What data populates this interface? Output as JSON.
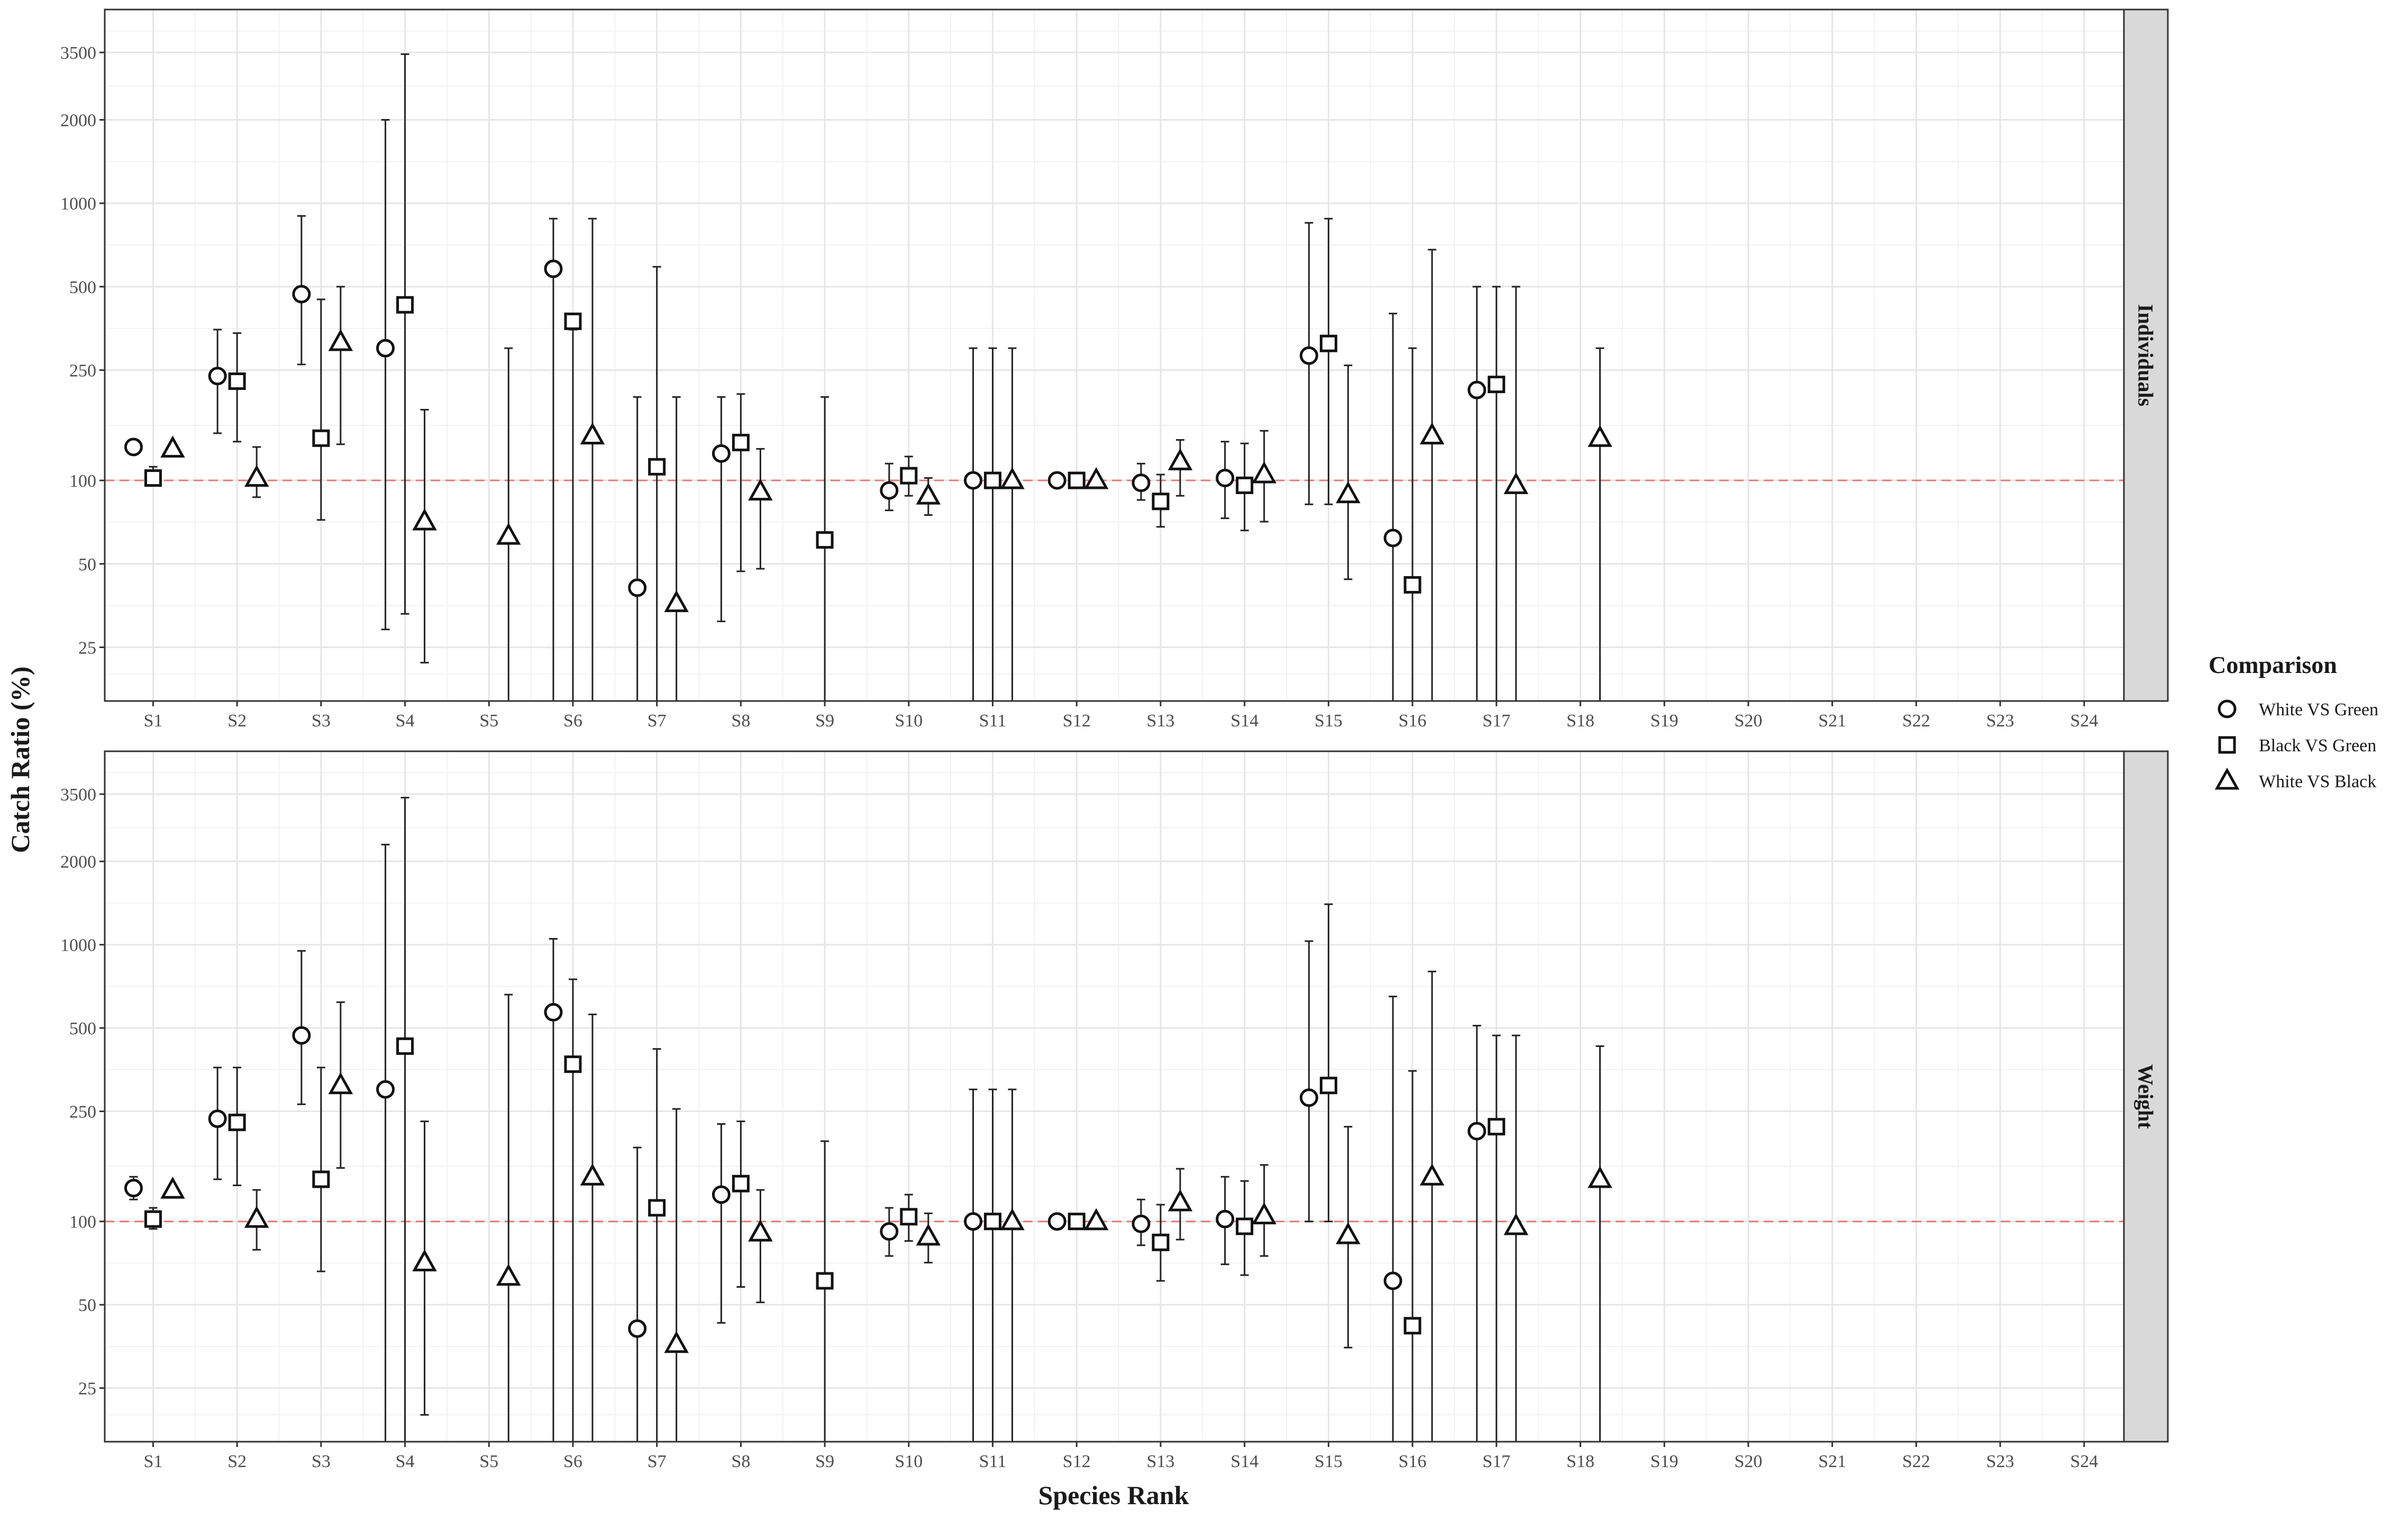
{
  "chart_data": {
    "type": "scatter",
    "xlabel": "Species Rank",
    "ylabel": "Catch Ratio (%)",
    "y_scale": "log",
    "y_ticks": [
      25,
      50,
      100,
      250,
      500,
      1000,
      2000,
      3500
    ],
    "y_tick_labels": [
      "25",
      "50",
      "100",
      "250",
      "500",
      "1000",
      "2000",
      "3500"
    ],
    "ylim": [
      16,
      5000
    ],
    "reference_line": 100,
    "reference_color": "#e07a7a",
    "categories": [
      "S1",
      "S2",
      "S3",
      "S4",
      "S5",
      "S6",
      "S7",
      "S8",
      "S9",
      "S10",
      "S11",
      "S12",
      "S13",
      "S14",
      "S15",
      "S16",
      "S17",
      "S18",
      "S19",
      "S20",
      "S21",
      "S22",
      "S23",
      "S24"
    ],
    "grid": true,
    "legend": {
      "title": "Comparison",
      "placement": "right",
      "entries": [
        {
          "label": "White VS Green",
          "shape": "circle"
        },
        {
          "label": "Black VS Green",
          "shape": "square"
        },
        {
          "label": "White VS Black",
          "shape": "triangle"
        }
      ]
    },
    "panels": [
      {
        "label": "Individuals",
        "series": [
          {
            "name": "White VS Green",
            "shape": "circle",
            "points": [
              {
                "x": "S1",
                "y": 132,
                "lo": 124,
                "hi": 140
              },
              {
                "x": "S2",
                "y": 238,
                "lo": 148,
                "hi": 350
              },
              {
                "x": "S3",
                "y": 470,
                "lo": 262,
                "hi": 900
              },
              {
                "x": "S4",
                "y": 300,
                "lo": 29,
                "hi": 2000
              },
              {
                "x": "S6",
                "y": 580,
                "lo": 16,
                "hi": 880
              },
              {
                "x": "S7",
                "y": 41,
                "lo": 16,
                "hi": 200
              },
              {
                "x": "S8",
                "y": 125,
                "lo": 31,
                "hi": 200
              },
              {
                "x": "S10",
                "y": 92,
                "lo": 78,
                "hi": 115
              },
              {
                "x": "S11",
                "y": 100,
                "lo": 16,
                "hi": 300
              },
              {
                "x": "S12",
                "y": 100,
                "lo": 97,
                "hi": 103
              },
              {
                "x": "S13",
                "y": 98,
                "lo": 85,
                "hi": 115
              },
              {
                "x": "S14",
                "y": 102,
                "lo": 73,
                "hi": 138
              },
              {
                "x": "S15",
                "y": 282,
                "lo": 82,
                "hi": 850
              },
              {
                "x": "S16",
                "y": 62,
                "lo": 16,
                "hi": 400
              },
              {
                "x": "S17",
                "y": 212,
                "lo": 16,
                "hi": 500
              }
            ]
          },
          {
            "name": "Black VS Green",
            "shape": "square",
            "points": [
              {
                "x": "S1",
                "y": 102,
                "lo": 97,
                "hi": 112
              },
              {
                "x": "S2",
                "y": 228,
                "lo": 138,
                "hi": 340
              },
              {
                "x": "S3",
                "y": 142,
                "lo": 72,
                "hi": 450
              },
              {
                "x": "S4",
                "y": 430,
                "lo": 33,
                "hi": 3450
              },
              {
                "x": "S6",
                "y": 375,
                "lo": 16,
                "hi": 350
              },
              {
                "x": "S7",
                "y": 112,
                "lo": 16,
                "hi": 590
              },
              {
                "x": "S8",
                "y": 137,
                "lo": 47,
                "hi": 205
              },
              {
                "x": "S9",
                "y": 61,
                "lo": 16,
                "hi": 200
              },
              {
                "x": "S10",
                "y": 104,
                "lo": 88,
                "hi": 122
              },
              {
                "x": "S11",
                "y": 100,
                "lo": 16,
                "hi": 300
              },
              {
                "x": "S12",
                "y": 100,
                "lo": 97,
                "hi": 103
              },
              {
                "x": "S13",
                "y": 84,
                "lo": 68,
                "hi": 105
              },
              {
                "x": "S14",
                "y": 96,
                "lo": 66,
                "hi": 136
              },
              {
                "x": "S15",
                "y": 312,
                "lo": 82,
                "hi": 880
              },
              {
                "x": "S16",
                "y": 42,
                "lo": 16,
                "hi": 300
              },
              {
                "x": "S17",
                "y": 222,
                "lo": 16,
                "hi": 500
              }
            ]
          },
          {
            "name": "White VS Black",
            "shape": "triangle",
            "points": [
              {
                "x": "S1",
                "y": 130,
                "lo": 128,
                "hi": 132
              },
              {
                "x": "S2",
                "y": 102,
                "lo": 87,
                "hi": 132
              },
              {
                "x": "S3",
                "y": 315,
                "lo": 135,
                "hi": 500
              },
              {
                "x": "S4",
                "y": 71,
                "lo": 22,
                "hi": 180
              },
              {
                "x": "S5",
                "y": 63,
                "lo": 16,
                "hi": 300
              },
              {
                "x": "S6",
                "y": 145,
                "lo": 16,
                "hi": 880
              },
              {
                "x": "S7",
                "y": 36,
                "lo": 16,
                "hi": 200
              },
              {
                "x": "S8",
                "y": 91,
                "lo": 48,
                "hi": 130
              },
              {
                "x": "S10",
                "y": 88,
                "lo": 75,
                "hi": 102
              },
              {
                "x": "S11",
                "y": 100,
                "lo": 16,
                "hi": 300
              },
              {
                "x": "S12",
                "y": 100,
                "lo": 94,
                "hi": 104
              },
              {
                "x": "S13",
                "y": 117,
                "lo": 88,
                "hi": 140
              },
              {
                "x": "S14",
                "y": 105,
                "lo": 71,
                "hi": 151
              },
              {
                "x": "S15",
                "y": 89,
                "lo": 44,
                "hi": 260
              },
              {
                "x": "S16",
                "y": 145,
                "lo": 16,
                "hi": 680
              },
              {
                "x": "S17",
                "y": 96,
                "lo": 16,
                "hi": 500
              },
              {
                "x": "S18",
                "y": 142,
                "lo": 16,
                "hi": 300
              }
            ]
          }
        ]
      },
      {
        "label": "Weight",
        "series": [
          {
            "name": "White VS Green",
            "shape": "circle",
            "points": [
              {
                "x": "S1",
                "y": 132,
                "lo": 120,
                "hi": 145
              },
              {
                "x": "S2",
                "y": 235,
                "lo": 142,
                "hi": 360
              },
              {
                "x": "S3",
                "y": 470,
                "lo": 265,
                "hi": 950
              },
              {
                "x": "S4",
                "y": 300,
                "lo": 16,
                "hi": 2300
              },
              {
                "x": "S6",
                "y": 570,
                "lo": 16,
                "hi": 1050
              },
              {
                "x": "S7",
                "y": 41,
                "lo": 16,
                "hi": 185
              },
              {
                "x": "S8",
                "y": 125,
                "lo": 43,
                "hi": 225
              },
              {
                "x": "S10",
                "y": 92,
                "lo": 75,
                "hi": 112
              },
              {
                "x": "S11",
                "y": 100,
                "lo": 16,
                "hi": 300
              },
              {
                "x": "S12",
                "y": 100,
                "lo": 97,
                "hi": 103
              },
              {
                "x": "S13",
                "y": 98,
                "lo": 82,
                "hi": 120
              },
              {
                "x": "S14",
                "y": 102,
                "lo": 70,
                "hi": 145
              },
              {
                "x": "S15",
                "y": 280,
                "lo": 100,
                "hi": 1030
              },
              {
                "x": "S16",
                "y": 61,
                "lo": 16,
                "hi": 650
              },
              {
                "x": "S17",
                "y": 212,
                "lo": 16,
                "hi": 510
              }
            ]
          },
          {
            "name": "Black VS Green",
            "shape": "square",
            "points": [
              {
                "x": "S1",
                "y": 102,
                "lo": 94,
                "hi": 112
              },
              {
                "x": "S2",
                "y": 228,
                "lo": 135,
                "hi": 360
              },
              {
                "x": "S3",
                "y": 142,
                "lo": 66,
                "hi": 360
              },
              {
                "x": "S4",
                "y": 430,
                "lo": 16,
                "hi": 3400
              },
              {
                "x": "S6",
                "y": 370,
                "lo": 16,
                "hi": 750
              },
              {
                "x": "S7",
                "y": 112,
                "lo": 16,
                "hi": 420
              },
              {
                "x": "S8",
                "y": 137,
                "lo": 58,
                "hi": 230
              },
              {
                "x": "S9",
                "y": 61,
                "lo": 16,
                "hi": 195
              },
              {
                "x": "S10",
                "y": 104,
                "lo": 85,
                "hi": 125
              },
              {
                "x": "S11",
                "y": 100,
                "lo": 16,
                "hi": 300
              },
              {
                "x": "S12",
                "y": 100,
                "lo": 97,
                "hi": 103
              },
              {
                "x": "S13",
                "y": 84,
                "lo": 61,
                "hi": 115
              },
              {
                "x": "S14",
                "y": 96,
                "lo": 64,
                "hi": 140
              },
              {
                "x": "S15",
                "y": 310,
                "lo": 100,
                "hi": 1400
              },
              {
                "x": "S16",
                "y": 42,
                "lo": 16,
                "hi": 350
              },
              {
                "x": "S17",
                "y": 220,
                "lo": 16,
                "hi": 470
              }
            ]
          },
          {
            "name": "White VS Black",
            "shape": "triangle",
            "points": [
              {
                "x": "S1",
                "y": 130,
                "lo": 128,
                "hi": 132
              },
              {
                "x": "S2",
                "y": 102,
                "lo": 79,
                "hi": 130
              },
              {
                "x": "S3",
                "y": 310,
                "lo": 156,
                "hi": 620
              },
              {
                "x": "S4",
                "y": 71,
                "lo": 20,
                "hi": 230
              },
              {
                "x": "S5",
                "y": 63,
                "lo": 16,
                "hi": 660
              },
              {
                "x": "S6",
                "y": 145,
                "lo": 16,
                "hi": 560
              },
              {
                "x": "S7",
                "y": 36,
                "lo": 16,
                "hi": 255
              },
              {
                "x": "S8",
                "y": 91,
                "lo": 51,
                "hi": 130
              },
              {
                "x": "S10",
                "y": 88,
                "lo": 71,
                "hi": 107
              },
              {
                "x": "S11",
                "y": 100,
                "lo": 16,
                "hi": 300
              },
              {
                "x": "S12",
                "y": 100,
                "lo": 96,
                "hi": 103
              },
              {
                "x": "S13",
                "y": 117,
                "lo": 86,
                "hi": 155
              },
              {
                "x": "S14",
                "y": 105,
                "lo": 75,
                "hi": 160
              },
              {
                "x": "S15",
                "y": 89,
                "lo": 35,
                "hi": 220
              },
              {
                "x": "S16",
                "y": 145,
                "lo": 16,
                "hi": 800
              },
              {
                "x": "S17",
                "y": 96,
                "lo": 16,
                "hi": 470
              },
              {
                "x": "S18",
                "y": 142,
                "lo": 16,
                "hi": 430
              }
            ]
          }
        ]
      }
    ]
  }
}
